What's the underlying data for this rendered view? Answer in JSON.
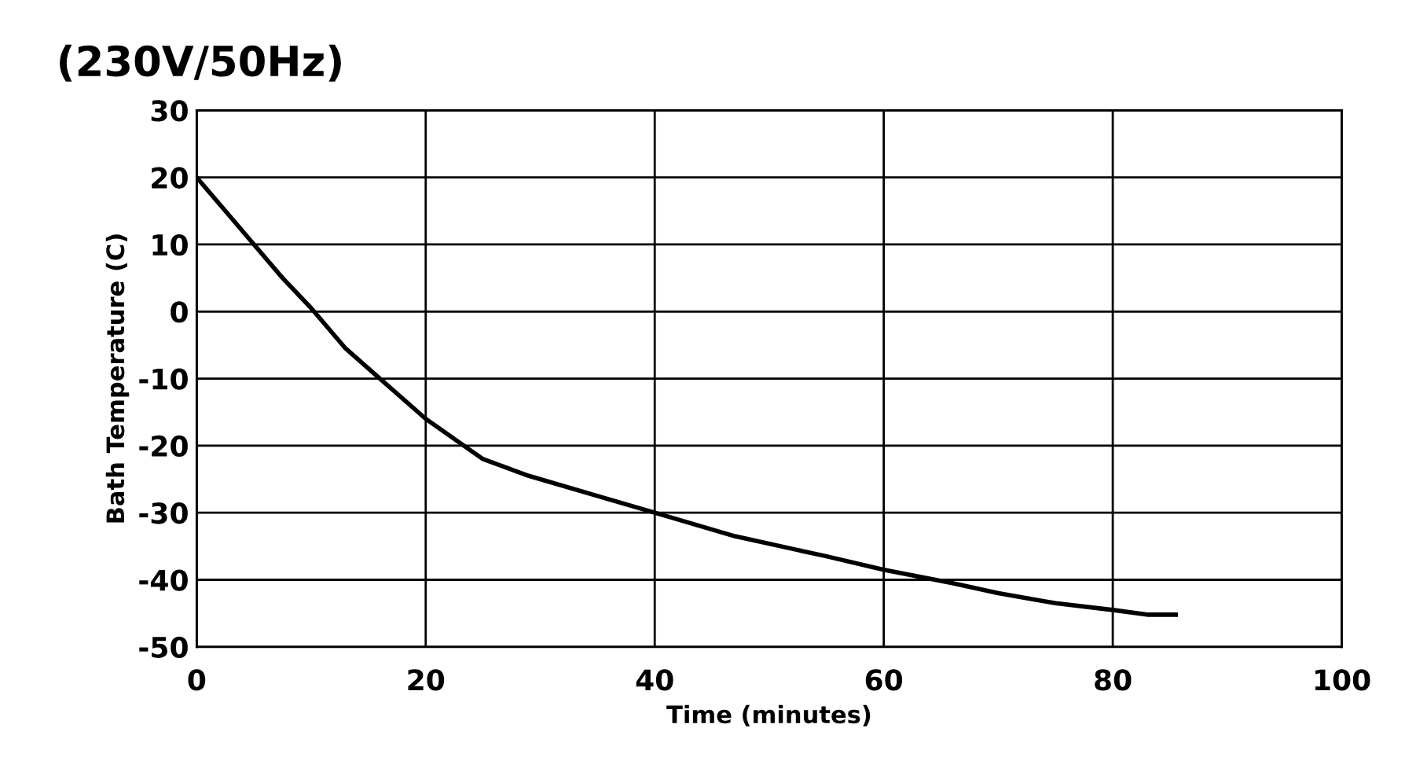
{
  "chart_data": {
    "type": "line",
    "title": "(230V/50Hz)",
    "xlabel": "Time (minutes)",
    "ylabel": "Bath Temperature (C)",
    "x": [
      0,
      2.5,
      5,
      7.5,
      10,
      13,
      16,
      20,
      25,
      29,
      35,
      40,
      47,
      55,
      60,
      66,
      70,
      75,
      80,
      83,
      85.5
    ],
    "series": [
      {
        "color": "#000000",
        "values": [
          20,
          15,
          10,
          5,
          0.5,
          -5.5,
          -10,
          -16,
          -22,
          -24.5,
          -27.5,
          -30,
          -33.5,
          -36.5,
          -38.5,
          -40.5,
          -42,
          -43.5,
          -44.5,
          -45.2,
          -45.2
        ]
      }
    ],
    "xlim": [
      0,
      100
    ],
    "xticks": [
      0,
      20,
      40,
      60,
      80,
      100
    ],
    "ylim": [
      -50,
      30
    ],
    "yticks": [
      -50,
      -40,
      -30,
      -20,
      -10,
      0,
      10,
      20,
      30
    ],
    "grid": true,
    "legend": false,
    "marker": "none",
    "line_style": "solid"
  }
}
